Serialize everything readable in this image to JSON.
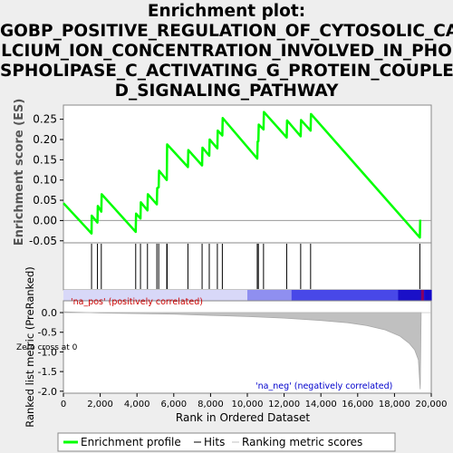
{
  "title_lines": [
    "Enrichment plot:",
    "GOBP_POSITIVE_REGULATION_OF_CYTOSOLIC_CA",
    "LCIUM_ION_CONCENTRATION_INVOLVED_IN_PHO",
    "SPHOLIPASE_C_ACTIVATING_G_PROTEIN_COUPLE",
    "D_SIGNALING_PATHWAY"
  ],
  "colors": {
    "enrichment_line": "#00ff00",
    "hits": "#000000",
    "ranking_fill": "#c0c0c0",
    "pos_band": "#ff0000",
    "neg_band": "#0000ff",
    "background": "#eeeeee",
    "plot_bg": "#ffffff"
  },
  "chart_data": {
    "type": "line",
    "panels": {
      "enrichment": {
        "ylabel": "Enrichment score (ES)",
        "ylim": [
          -0.055,
          0.285
        ],
        "yticks": [
          -0.05,
          0.0,
          0.05,
          0.1,
          0.15,
          0.2,
          0.25
        ],
        "ytick_labels": [
          "-0.05",
          "0.00",
          "0.05",
          "0.10",
          "0.15",
          "0.20",
          "0.25"
        ],
        "points": [
          [
            0,
            0.043
          ],
          [
            1530,
            -0.032
          ],
          [
            1540,
            0.012
          ],
          [
            1850,
            -0.005
          ],
          [
            1870,
            0.036
          ],
          [
            2060,
            0.022
          ],
          [
            2080,
            0.065
          ],
          [
            3930,
            -0.028
          ],
          [
            3950,
            0.017
          ],
          [
            4190,
            0.005
          ],
          [
            4210,
            0.045
          ],
          [
            4570,
            0.025
          ],
          [
            4590,
            0.065
          ],
          [
            5080,
            0.04
          ],
          [
            5100,
            0.08
          ],
          [
            5180,
            0.082
          ],
          [
            5200,
            0.123
          ],
          [
            5620,
            0.1
          ],
          [
            5640,
            0.188
          ],
          [
            6770,
            0.132
          ],
          [
            6790,
            0.174
          ],
          [
            7540,
            0.136
          ],
          [
            7560,
            0.18
          ],
          [
            7930,
            0.16
          ],
          [
            7950,
            0.2
          ],
          [
            8370,
            0.178
          ],
          [
            8390,
            0.222
          ],
          [
            8640,
            0.21
          ],
          [
            8660,
            0.253
          ],
          [
            10540,
            0.153
          ],
          [
            10560,
            0.195
          ],
          [
            10600,
            0.196
          ],
          [
            10620,
            0.237
          ],
          [
            10880,
            0.225
          ],
          [
            10900,
            0.268
          ],
          [
            12140,
            0.205
          ],
          [
            12160,
            0.247
          ],
          [
            12900,
            0.208
          ],
          [
            12920,
            0.248
          ],
          [
            13440,
            0.222
          ],
          [
            13460,
            0.263
          ],
          [
            19380,
            -0.042
          ],
          [
            19400,
            0.002
          ]
        ]
      },
      "hits": [
        1530,
        1850,
        2060,
        3930,
        4190,
        4570,
        5080,
        5180,
        5620,
        5640,
        6770,
        7540,
        7930,
        8370,
        8640,
        10540,
        10600,
        10880,
        12140,
        12900,
        13440,
        19380
      ],
      "ranking": {
        "ylabel": "Ranked list metric (PreRanked)",
        "ylim": [
          -2.05,
          0.3
        ],
        "yticks": [
          0.0,
          -0.5,
          -1.0,
          -1.5,
          -2.0
        ],
        "ytick_labels": [
          "0.0",
          "-0.5",
          "-1.0",
          "-1.5",
          "-2.0"
        ],
        "curve": [
          [
            0,
            0.02
          ],
          [
            2000,
            -0.01
          ],
          [
            6000,
            -0.04
          ],
          [
            8000,
            -0.07
          ],
          [
            10000,
            -0.1
          ],
          [
            12000,
            -0.14
          ],
          [
            14000,
            -0.2
          ],
          [
            15500,
            -0.26
          ],
          [
            16500,
            -0.33
          ],
          [
            17500,
            -0.44
          ],
          [
            18300,
            -0.6
          ],
          [
            18800,
            -0.78
          ],
          [
            19100,
            -0.95
          ],
          [
            19300,
            -1.2
          ],
          [
            19400,
            -1.95
          ],
          [
            19450,
            0
          ]
        ],
        "pos_label": "'na_pos' (positively correlated)",
        "neg_label": "'na_neg' (negatively correlated)",
        "zero_cross_label": "Zero cross at 0"
      }
    },
    "xlabel": "Rank in Ordered Dataset",
    "xlim": [
      0,
      20000
    ],
    "xticks": [
      0,
      2000,
      4000,
      6000,
      8000,
      10000,
      12000,
      14000,
      16000,
      18000,
      20000
    ],
    "xtick_labels": [
      "0",
      "2,000",
      "4,000",
      "6,000",
      "8,000",
      "10,000",
      "12,000",
      "14,000",
      "16,000",
      "18,000",
      "20,000"
    ],
    "legend": {
      "position": "bottom",
      "entries": [
        "Enrichment profile",
        "Hits",
        "Ranking metric scores"
      ]
    }
  }
}
